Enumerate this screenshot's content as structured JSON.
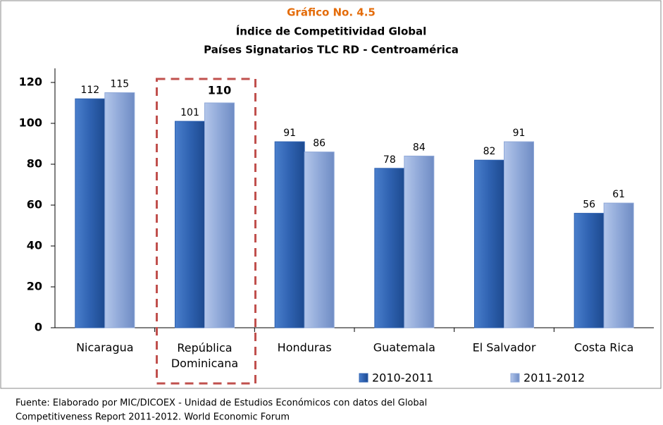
{
  "chart_data": {
    "type": "bar",
    "title": "Gráfico No. 4.5",
    "subtitle": [
      "Índice de Competitividad Global",
      "Países Signatarios TLC RD - Centroamérica"
    ],
    "categories": [
      "Nicaragua",
      "República Dominicana",
      "Honduras",
      "Guatemala",
      "El Salvador",
      "Costa Rica"
    ],
    "series": [
      {
        "name": "2010-2011",
        "color": "#2f62b1",
        "values": [
          112,
          101,
          91,
          78,
          82,
          56
        ]
      },
      {
        "name": "2011-2012",
        "color": "#8fa8d8",
        "values": [
          115,
          110,
          86,
          84,
          91,
          61
        ]
      }
    ],
    "ylim": [
      0,
      120
    ],
    "yticks": [
      0,
      20,
      40,
      60,
      80,
      100,
      120
    ],
    "highlight": 1,
    "source": [
      "Fuente: Elaborado por MIC/DICOEX - Unidad de Estudios Económicos con datos del Global",
      "Competitiveness Report 2011-2012. World Economic Forum"
    ]
  }
}
